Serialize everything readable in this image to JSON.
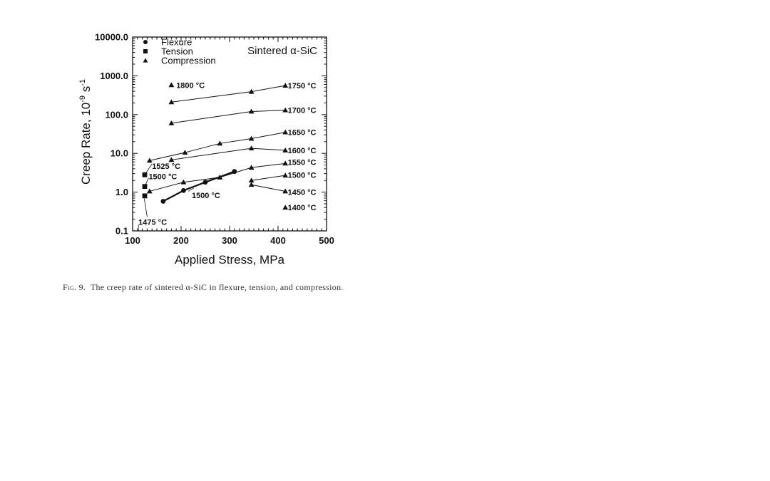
{
  "chart_data": {
    "type": "scatter",
    "title": "",
    "inset_label": "Sintered α-SiC",
    "xlabel": "Applied Stress, MPa",
    "ylabel": "Creep Rate, 10⁻⁹ s⁻¹",
    "ylabel_main": "Creep Rate, 10",
    "ylabel_exp1": "-9",
    "ylabel_unit": " s",
    "ylabel_exp2": "-1",
    "xlim": [
      100,
      500
    ],
    "ylim": [
      0.1,
      10000
    ],
    "yscale": "log",
    "x_ticks": [
      {
        "value": 100,
        "label": "100"
      },
      {
        "value": 200,
        "label": "200"
      },
      {
        "value": 300,
        "label": "300"
      },
      {
        "value": 400,
        "label": "400"
      },
      {
        "value": 500,
        "label": "500"
      }
    ],
    "y_ticks": [
      {
        "value": 0.1,
        "label": "0.1"
      },
      {
        "value": 1,
        "label": "1.0"
      },
      {
        "value": 10,
        "label": "10.0"
      },
      {
        "value": 100,
        "label": "100.0"
      },
      {
        "value": 1000,
        "label": "1000.0"
      },
      {
        "value": 10000,
        "label": "10000.0"
      }
    ],
    "legend": {
      "position": "top-left",
      "entries": [
        {
          "marker": "circle",
          "label": "Flexure"
        },
        {
          "marker": "square",
          "label": "Tension"
        },
        {
          "marker": "triangle",
          "label": "Compression"
        }
      ]
    },
    "series": [
      {
        "name": "Compression 1750 °C",
        "mode": "Compression",
        "marker": "triangle",
        "label": "1750 °C",
        "points": [
          [
            180,
            210
          ],
          [
            345,
            390
          ],
          [
            415,
            560
          ]
        ]
      },
      {
        "name": "Compression 1800 °C",
        "mode": "Compression",
        "marker": "triangle",
        "label": "1800 °C",
        "points": [
          [
            180,
            580
          ]
        ],
        "no_line": true
      },
      {
        "name": "Compression 1700 °C",
        "mode": "Compression",
        "marker": "triangle",
        "label": "1700 °C",
        "points": [
          [
            180,
            60
          ],
          [
            345,
            120
          ],
          [
            415,
            130
          ]
        ]
      },
      {
        "name": "Compression 1650 °C",
        "mode": "Compression",
        "marker": "triangle",
        "label": "1650 °C",
        "points": [
          [
            135,
            6.5
          ],
          [
            208,
            10.5
          ],
          [
            280,
            18
          ],
          [
            345,
            24
          ],
          [
            415,
            35
          ]
        ]
      },
      {
        "name": "Compression 1600 °C",
        "mode": "Compression",
        "marker": "triangle",
        "label": "1600 °C",
        "points": [
          [
            180,
            6.8
          ],
          [
            345,
            13.5
          ],
          [
            415,
            12
          ]
        ]
      },
      {
        "name": "Compression 1550 °C",
        "mode": "Compression",
        "marker": "triangle",
        "label": "1550 °C",
        "points": [
          [
            135,
            1.05
          ],
          [
            205,
            1.8
          ],
          [
            280,
            2.4
          ],
          [
            345,
            4.3
          ],
          [
            415,
            5.5
          ]
        ]
      },
      {
        "name": "Compression 1500 °C",
        "mode": "Compression",
        "marker": "triangle",
        "label": "1500 °C",
        "points": [
          [
            345,
            2.0
          ],
          [
            415,
            2.7
          ]
        ]
      },
      {
        "name": "Compression 1450 °C",
        "mode": "Compression",
        "marker": "triangle",
        "label": "1450 °C",
        "points": [
          [
            345,
            1.55
          ],
          [
            415,
            1.05
          ]
        ]
      },
      {
        "name": "Compression 1400 °C",
        "mode": "Compression",
        "marker": "triangle",
        "label": "1400 °C",
        "points": [
          [
            415,
            0.4
          ]
        ],
        "no_line": true
      },
      {
        "name": "Flexure 1500 °C",
        "mode": "Flexure",
        "marker": "circle",
        "label": "1500 °C",
        "points": [
          [
            163,
            0.58
          ],
          [
            205,
            1.1
          ],
          [
            250,
            1.8
          ],
          [
            310,
            3.4
          ]
        ],
        "thick": true
      },
      {
        "name": "Tension 1525 °C",
        "mode": "Tension",
        "marker": "square",
        "label": "1525 °C",
        "points": [
          [
            125,
            2.8
          ]
        ],
        "no_line": true
      },
      {
        "name": "Tension 1500 °C",
        "mode": "Tension",
        "marker": "square",
        "label": "1500 °C",
        "points": [
          [
            125,
            1.4
          ]
        ],
        "no_line": true
      },
      {
        "name": "Tension 1475 °C",
        "mode": "Tension",
        "marker": "square",
        "label": "1475 °C",
        "points": [
          [
            125,
            0.8
          ]
        ],
        "no_line": true
      }
    ],
    "annotations": [
      {
        "text": "1800 °C",
        "x": 190,
        "y": 580
      },
      {
        "text": "1750 °C",
        "x": 420,
        "y": 560
      },
      {
        "text": "1700 °C",
        "x": 420,
        "y": 130
      },
      {
        "text": "1650 °C",
        "x": 420,
        "y": 35
      },
      {
        "text": "1600 °C",
        "x": 420,
        "y": 12
      },
      {
        "text": "1550 °C",
        "x": 420,
        "y": 6.0
      },
      {
        "text": "1500 °C",
        "x": 420,
        "y": 2.8
      },
      {
        "text": "1450 °C",
        "x": 420,
        "y": 1.0
      },
      {
        "text": "1400 °C",
        "x": 420,
        "y": 0.4
      },
      {
        "text": "1525 °C",
        "x": 140,
        "y": 4.7
      },
      {
        "text": "1500 °C",
        "x": 133,
        "y": 2.55
      },
      {
        "text": "1500 °C",
        "x": 222,
        "y": 0.83
      },
      {
        "text": "1475 °C",
        "x": 112,
        "y": 0.17
      }
    ]
  },
  "caption": {
    "fig_label": "Fig. 9.",
    "text": "The creep rate of sintered α-SiC in flexure, tension, and compression."
  }
}
